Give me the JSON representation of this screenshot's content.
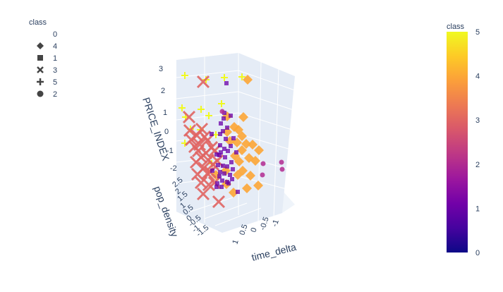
{
  "chart_data": {
    "type": "scatter3d",
    "legend": {
      "title": "class",
      "placement": "top-left",
      "entries": [
        {
          "label": "0",
          "symbol": "none"
        },
        {
          "label": "4",
          "symbol": "diamond"
        },
        {
          "label": "1",
          "symbol": "square"
        },
        {
          "label": "3",
          "symbol": "x"
        },
        {
          "label": "5",
          "symbol": "cross"
        },
        {
          "label": "2",
          "symbol": "circle"
        }
      ]
    },
    "colorbar": {
      "title": "class",
      "min": 0,
      "max": 5,
      "ticks": [
        "0",
        "1",
        "2",
        "3",
        "4",
        "5"
      ],
      "colorscale": [
        "#0d0887",
        "#46039f",
        "#7201a8",
        "#9c179e",
        "#bd3786",
        "#d8576b",
        "#ed7953",
        "#fb9f3a",
        "#fdca26",
        "#f0f921"
      ]
    },
    "axes": {
      "x": {
        "label": "time_delta",
        "ticks": [
          "1",
          "0.5",
          "0",
          "-0.5",
          "-1"
        ]
      },
      "y": {
        "label": "pop_density",
        "ticks": [
          "2.5",
          "2",
          "1.5",
          "1",
          "0.5",
          "0",
          "-0.5",
          "-1",
          "-1.5"
        ]
      },
      "z": {
        "label": "PRICE_INDEX",
        "ticks": [
          "3",
          "2",
          "1",
          "0",
          "-1",
          "-2"
        ]
      }
    },
    "series": [
      {
        "class": 5,
        "symbol": "cross",
        "color": "#f0f921",
        "count": 14
      },
      {
        "class": 4,
        "symbol": "diamond",
        "color": "#fca636",
        "count": 26
      },
      {
        "class": 3,
        "symbol": "x",
        "color": "#e16462",
        "count": 28
      },
      {
        "class": 1,
        "symbol": "square",
        "color": "#6a00a8",
        "count": 38
      },
      {
        "class": 2,
        "symbol": "circle",
        "color": "#b12a90",
        "count": 5
      }
    ]
  }
}
